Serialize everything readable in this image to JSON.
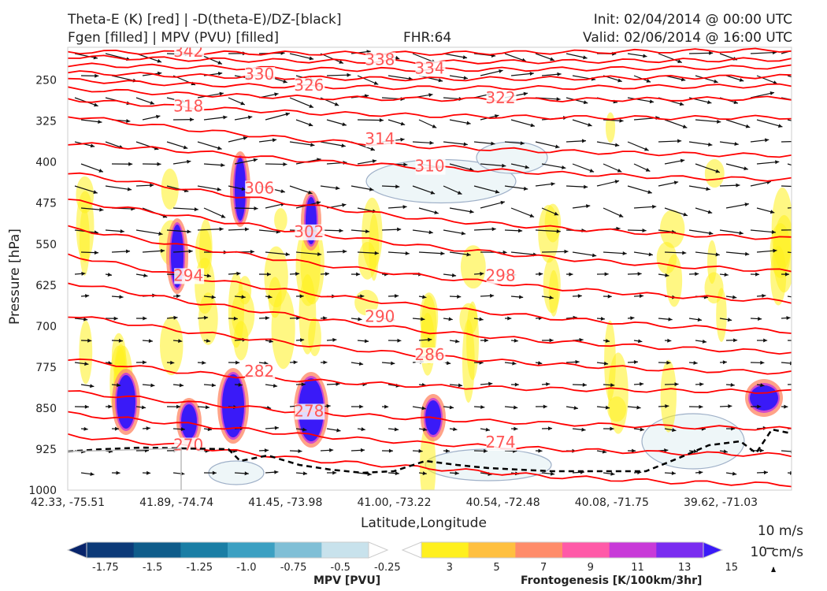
{
  "header": {
    "title_line1": "Theta-E (K) [red] | -D(theta-E)/DZ-[black]",
    "title_line2": "Fgen [filled] | MPV (PVU) [filled]",
    "fhr": "FHR:64",
    "init": "Init: 02/04/2014 @ 00:00 UTC",
    "valid": "Valid: 02/06/2014 @ 16:00 UTC"
  },
  "colors": {
    "theta_e": "#ff0000",
    "theta_e_label": "#ff5555",
    "neg_dthetae_dz": "#000000",
    "terrain_line": "#bbbbbb",
    "mpv_contour": "#9fb0c8"
  },
  "chart_data": {
    "type": "cross-section",
    "ylabel": "Pressure [hPa]",
    "xlabel": "Latitude,Longitude",
    "y_ticks": [
      "250",
      "325",
      "400",
      "475",
      "550",
      "625",
      "700",
      "775",
      "850",
      "925",
      "1000"
    ],
    "y_tick_values": [
      250,
      325,
      400,
      475,
      550,
      625,
      700,
      775,
      850,
      925,
      1000
    ],
    "ylim": [
      1000,
      190
    ],
    "x_ticks": [
      "42.33, -75.51",
      "41.89, -74.74",
      "41.45, -73.98",
      "41.00, -73.22",
      "40.54, -72.48",
      "40.08, -71.75",
      "39.62, -71.03"
    ],
    "theta_e_contours": [
      {
        "value": "342",
        "pressure": [
          198,
          200,
          201,
          201,
          199,
          197,
          195
        ]
      },
      {
        "value": "338",
        "pressure": [
          207,
          212,
          215,
          217,
          216,
          214,
          212
        ]
      },
      {
        "value": "334",
        "pressure": [
          222,
          226,
          230,
          231,
          230,
          228,
          226
        ]
      },
      {
        "value": "330",
        "pressure": [
          236,
          242,
          246,
          248,
          247,
          245,
          243
        ]
      },
      {
        "value": "326",
        "pressure": [
          250,
          258,
          262,
          264,
          264,
          262,
          260
        ]
      },
      {
        "value": "322",
        "pressure": [
          266,
          276,
          282,
          285,
          286,
          285,
          283
        ]
      },
      {
        "value": "318",
        "pressure": [
          285,
          300,
          310,
          315,
          318,
          319,
          318
        ]
      },
      {
        "value": "314",
        "pressure": [
          315,
          340,
          360,
          372,
          380,
          385,
          388
        ]
      },
      {
        "value": "310",
        "pressure": [
          365,
          380,
          398,
          410,
          420,
          428,
          432
        ]
      },
      {
        "value": "306",
        "pressure": [
          420,
          450,
          480,
          505,
          520,
          532,
          540
        ]
      },
      {
        "value": "302",
        "pressure": [
          470,
          500,
          530,
          555,
          575,
          590,
          600
        ]
      },
      {
        "value": "298",
        "pressure": [
          520,
          555,
          585,
          610,
          630,
          645,
          655
        ]
      },
      {
        "value": "294",
        "pressure": [
          570,
          610,
          640,
          665,
          685,
          700,
          710
        ]
      },
      {
        "value": "290",
        "pressure": [
          620,
          655,
          685,
          710,
          728,
          740,
          748
        ]
      },
      {
        "value": "286",
        "pressure": [
          680,
          710,
          735,
          755,
          770,
          780,
          785
        ]
      },
      {
        "value": "282",
        "pressure": [
          760,
          785,
          800,
          810,
          815,
          818,
          820
        ]
      },
      {
        "value": "278",
        "pressure": [
          820,
          840,
          858,
          870,
          878,
          884,
          888
        ]
      },
      {
        "value": "274",
        "pressure": [
          860,
          880,
          900,
          915,
          925,
          932,
          936
        ]
      },
      {
        "value": "270",
        "pressure": [
          900,
          920,
          945,
          960,
          975,
          985,
          990
        ]
      }
    ],
    "mpv_colorbar": {
      "label": "MPV [PVU]",
      "levels": [
        "-1.75",
        "-1.5",
        "-1.25",
        "-1.0",
        "-0.75",
        "-0.5",
        "-0.25"
      ],
      "colors": [
        "#08246b",
        "#0c3a78",
        "#0f5c8a",
        "#1a7ea5",
        "#3ca0c2",
        "#80bfd6",
        "#c8e2ec",
        "#ffffff"
      ]
    },
    "fgen_colorbar": {
      "label": "Frontogenesis [K/100km/3hr]",
      "levels": [
        "3",
        "5",
        "7",
        "9",
        "11",
        "13",
        "15"
      ],
      "colors": [
        "#ffffff",
        "#fff01e",
        "#ffc040",
        "#ff8c6a",
        "#ff5aa8",
        "#c83ad8",
        "#7a2cf0",
        "#3a1af8"
      ]
    },
    "vector_scale": {
      "horizontal": "10 m/s",
      "vertical": "10 cm/s"
    }
  }
}
